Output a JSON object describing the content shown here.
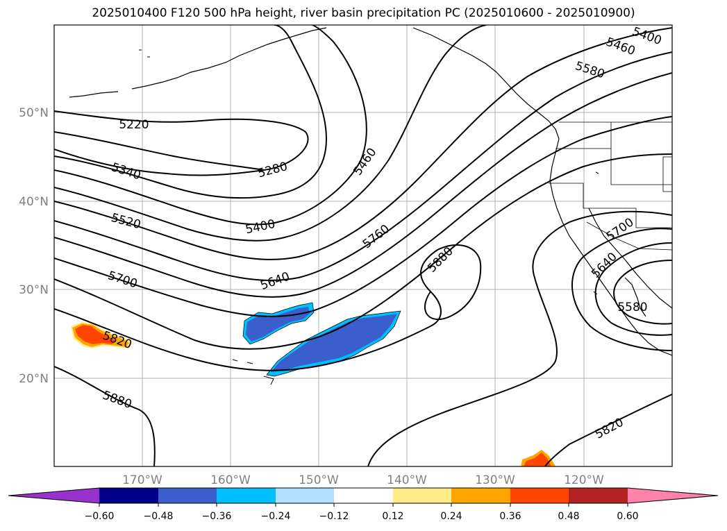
{
  "title": "2025010400 F120 500 hPa height, river basin precipitation PC (2025010600 - 2025010900)",
  "map": {
    "lat_labels": [
      "50°N",
      "40°N",
      "30°N",
      "20°N"
    ],
    "lon_labels": [
      "170°W",
      "160°W",
      "150°W",
      "140°W",
      "130°W",
      "120°W"
    ],
    "contour_labels": [
      "5400",
      "5460",
      "5580",
      "5220",
      "5340",
      "5280",
      "5460",
      "5520",
      "5400",
      "5760",
      "5700",
      "5640",
      "5880",
      "5700",
      "5640",
      "5580",
      "5820",
      "5880",
      "5820"
    ],
    "colors": {
      "contour": "#000000",
      "grid": "#b0b0b0",
      "coast": "#000000"
    }
  },
  "colorbar": {
    "ticks": [
      "−0.60",
      "−0.48",
      "−0.36",
      "−0.24",
      "−0.12",
      "0.12",
      "0.24",
      "0.36",
      "0.48",
      "0.60"
    ],
    "colors": [
      "#9932cc",
      "#00008b",
      "#3a5fcd",
      "#00bfff",
      "#b0e2ff",
      "#ffffff",
      "#ffec8b",
      "#ffa500",
      "#ff4500",
      "#b22222",
      "#ff82ab"
    ]
  }
}
